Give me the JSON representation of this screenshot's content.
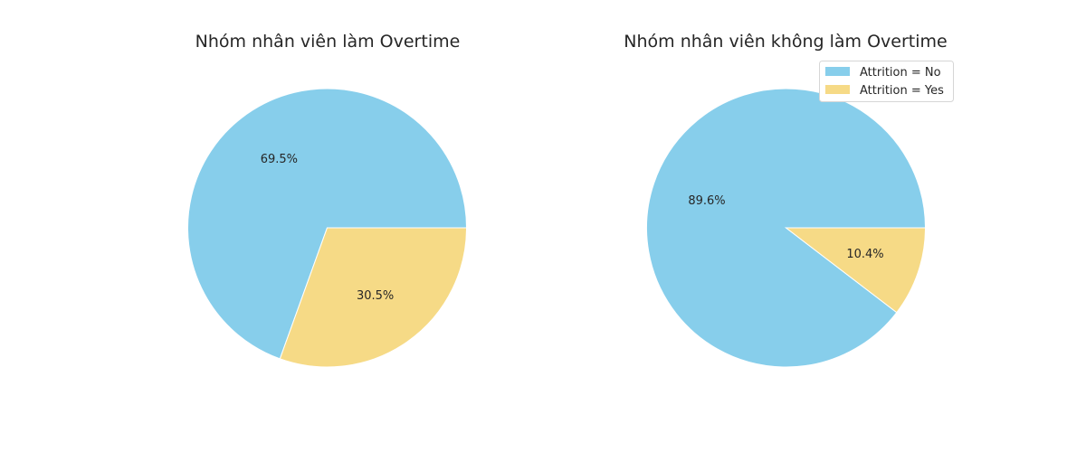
{
  "colors": {
    "no": "#87ceeb",
    "yes": "#f6da86"
  },
  "legend": [
    "Attrition = No",
    "Attrition = Yes"
  ],
  "chart_data": [
    {
      "type": "pie",
      "title": "Nhóm nhân viên làm Overtime",
      "labels": [
        "Attrition = No",
        "Attrition = Yes"
      ],
      "values": [
        69.5,
        30.5
      ],
      "value_labels": [
        "69.5%",
        "30.5%"
      ],
      "colors": [
        "#87ceeb",
        "#f6da86"
      ]
    },
    {
      "type": "pie",
      "title": "Nhóm nhân viên không làm Overtime",
      "labels": [
        "Attrition = No",
        "Attrition = Yes"
      ],
      "values": [
        89.6,
        10.4
      ],
      "value_labels": [
        "89.6%",
        "10.4%"
      ],
      "colors": [
        "#87ceeb",
        "#f6da86"
      ],
      "legend_position": "top-right"
    }
  ]
}
